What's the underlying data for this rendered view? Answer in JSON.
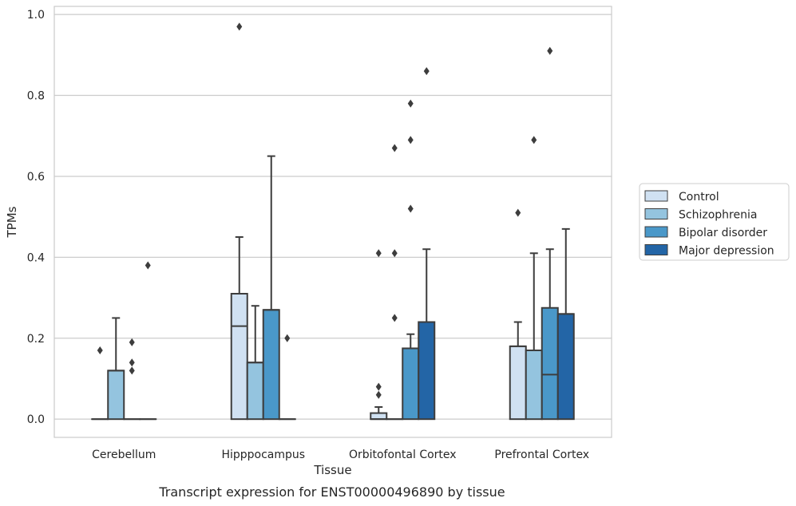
{
  "chart_data": {
    "type": "box",
    "caption": "Transcript expression for ENST00000496890 by tissue",
    "xlabel": "Tissue",
    "ylabel": "TPMs",
    "ylim": [
      -0.045,
      1.02
    ],
    "yticks": [
      "0.0",
      "0.2",
      "0.4",
      "0.6",
      "0.8",
      "1.0"
    ],
    "grid": true,
    "legend_position": "right",
    "categories": [
      "Cerebellum",
      "Hipppocampus",
      "Orbitofontal Cortex",
      "Prefrontal Cortex"
    ],
    "series": [
      {
        "name": "Control",
        "color": "#d0e1f2",
        "boxes": [
          {
            "q1": 0,
            "median": 0,
            "q3": 0,
            "whisker_low": 0,
            "whisker_high": 0,
            "outliers": [
              0.17
            ]
          },
          {
            "q1": 0,
            "median": 0.23,
            "q3": 0.31,
            "whisker_low": 0,
            "whisker_high": 0.45,
            "outliers": [
              0.97
            ]
          },
          {
            "q1": 0,
            "median": 0,
            "q3": 0.015,
            "whisker_low": 0,
            "whisker_high": 0.03,
            "outliers": [
              0.06,
              0.08,
              0.41
            ]
          },
          {
            "q1": 0,
            "median": 0.18,
            "q3": 0.18,
            "whisker_low": 0,
            "whisker_high": 0.24,
            "outliers": [
              0.51
            ]
          }
        ]
      },
      {
        "name": "Schizophrenia",
        "color": "#94c4df",
        "boxes": [
          {
            "q1": 0,
            "median": 0.12,
            "q3": 0.12,
            "whisker_low": 0,
            "whisker_high": 0.25,
            "outliers": []
          },
          {
            "q1": 0,
            "median": 0.14,
            "q3": 0.14,
            "whisker_low": 0,
            "whisker_high": 0.28,
            "outliers": []
          },
          {
            "q1": 0,
            "median": 0,
            "q3": 0,
            "whisker_low": 0,
            "whisker_high": 0,
            "outliers": [
              0.25,
              0.41,
              0.67
            ]
          },
          {
            "q1": 0,
            "median": 0.17,
            "q3": 0.17,
            "whisker_low": 0,
            "whisker_high": 0.41,
            "outliers": [
              0.69
            ]
          }
        ]
      },
      {
        "name": "Bipolar disorder",
        "color": "#4a98c9",
        "boxes": [
          {
            "q1": 0,
            "median": 0,
            "q3": 0,
            "whisker_low": 0,
            "whisker_high": 0,
            "outliers": [
              0.12,
              0.14,
              0.19
            ]
          },
          {
            "q1": 0,
            "median": 0.27,
            "q3": 0.27,
            "whisker_low": 0,
            "whisker_high": 0.65,
            "outliers": []
          },
          {
            "q1": 0,
            "median": 0.175,
            "q3": 0.175,
            "whisker_low": 0,
            "whisker_high": 0.21,
            "outliers": [
              0.52,
              0.69,
              0.78
            ]
          },
          {
            "q1": 0,
            "median": 0.11,
            "q3": 0.275,
            "whisker_low": 0,
            "whisker_high": 0.42,
            "outliers": [
              0.91
            ]
          }
        ]
      },
      {
        "name": "Major depression",
        "color": "#2365a6",
        "boxes": [
          {
            "q1": 0,
            "median": 0,
            "q3": 0,
            "whisker_low": 0,
            "whisker_high": 0,
            "outliers": [
              0.38
            ]
          },
          {
            "q1": 0,
            "median": 0,
            "q3": 0,
            "whisker_low": 0,
            "whisker_high": 0,
            "outliers": [
              0.2
            ]
          },
          {
            "q1": 0,
            "median": 0.24,
            "q3": 0.24,
            "whisker_low": 0,
            "whisker_high": 0.42,
            "outliers": [
              0.86
            ]
          },
          {
            "q1": 0,
            "median": 0.26,
            "q3": 0.26,
            "whisker_low": 0,
            "whisker_high": 0.47,
            "outliers": []
          }
        ]
      }
    ]
  }
}
